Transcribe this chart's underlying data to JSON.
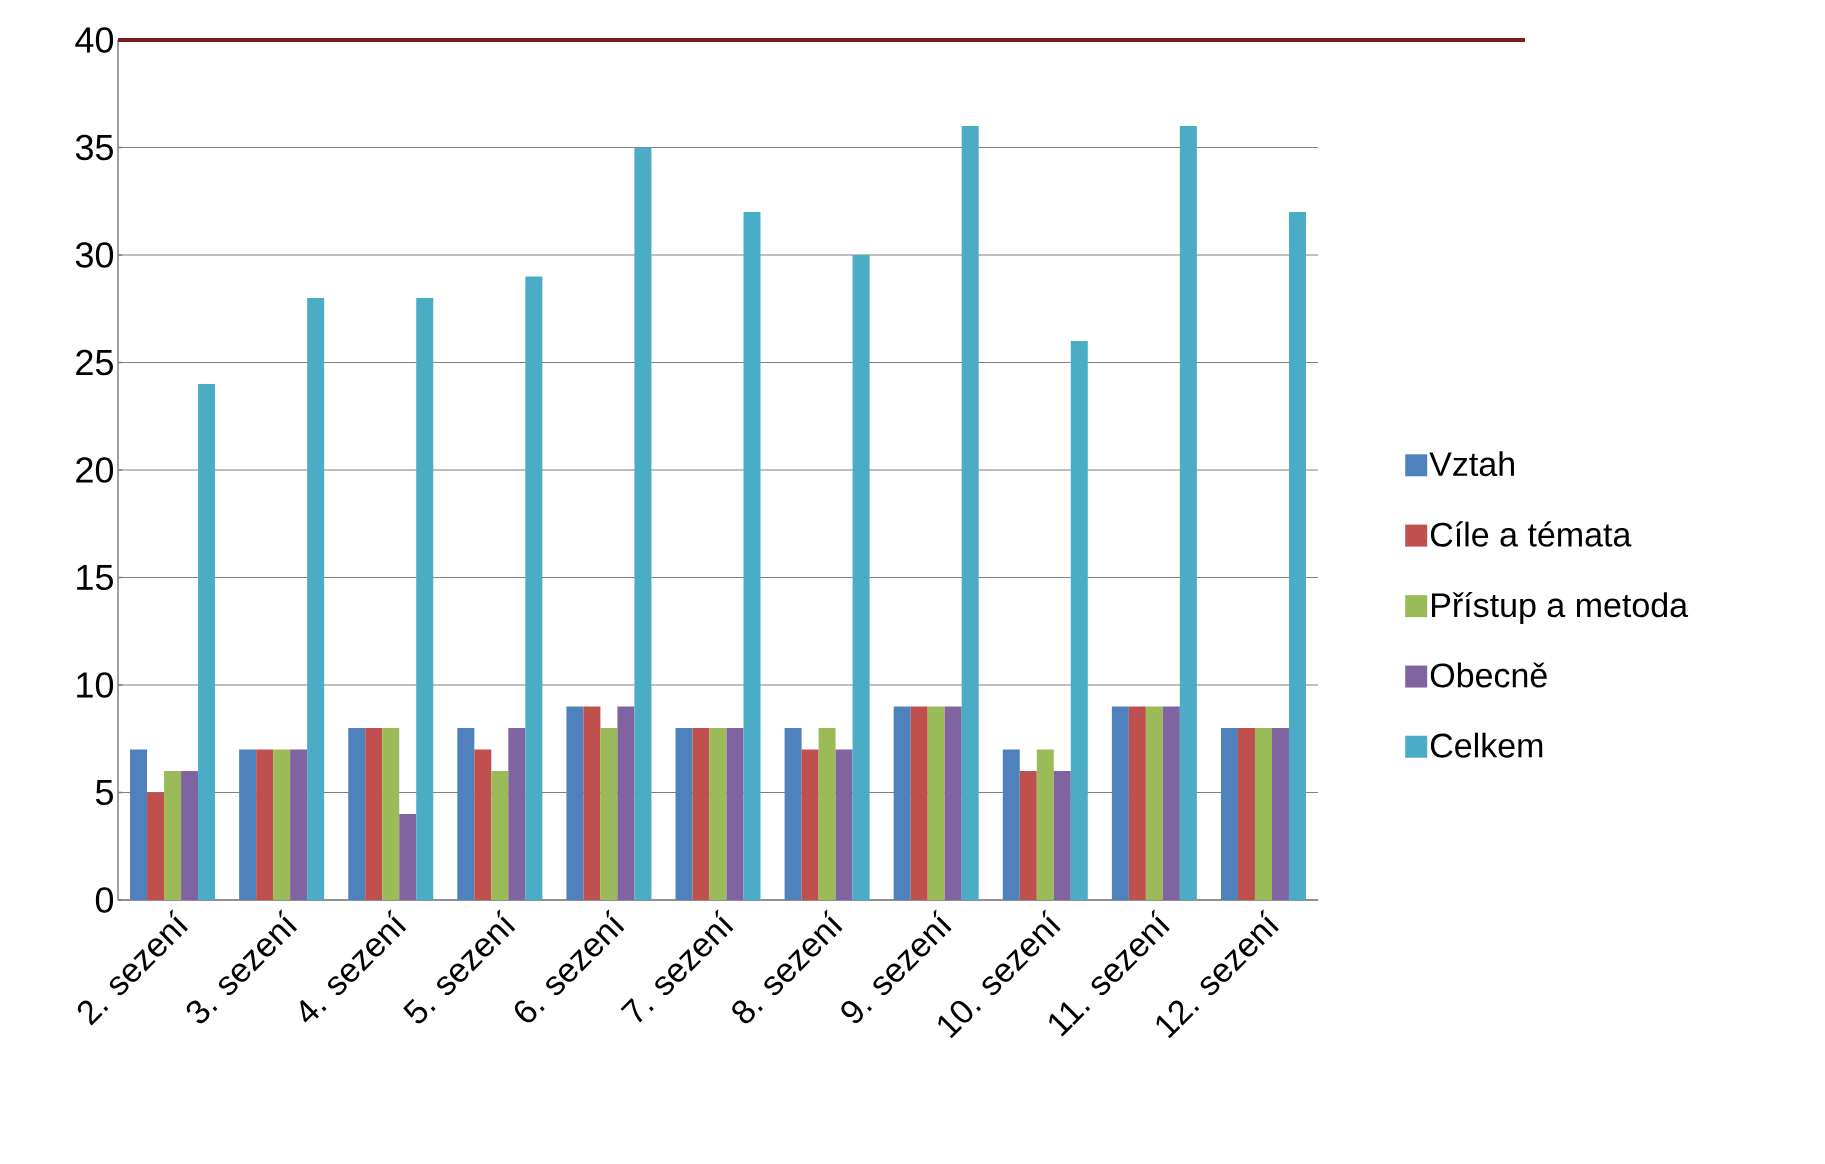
{
  "chart_data": {
    "type": "bar",
    "categories": [
      "2. sezení",
      "3. sezení",
      "4. sezení",
      "5. sezení",
      "6. sezení",
      "7. sezení",
      "8. sezení",
      "9. sezení",
      "10. sezení",
      "11. sezení",
      "12. sezení"
    ],
    "series": [
      {
        "name": "Vztah",
        "color": "#4f81bd",
        "values": [
          7,
          7,
          8,
          8,
          9,
          8,
          8,
          9,
          7,
          9,
          8
        ]
      },
      {
        "name": "Cíle a témata",
        "color": "#c0504d",
        "values": [
          5,
          7,
          8,
          7,
          9,
          8,
          7,
          9,
          6,
          9,
          8
        ]
      },
      {
        "name": "Přístup a metoda",
        "color": "#9bbb59",
        "values": [
          6,
          7,
          8,
          6,
          8,
          8,
          8,
          9,
          7,
          9,
          8
        ]
      },
      {
        "name": "Obecně",
        "color": "#8064a2",
        "values": [
          6,
          7,
          4,
          8,
          9,
          8,
          7,
          9,
          6,
          9,
          8
        ]
      },
      {
        "name": "Celkem",
        "color": "#4bacc6",
        "values": [
          24,
          28,
          28,
          29,
          35,
          32,
          30,
          36,
          26,
          36,
          32
        ]
      }
    ],
    "ylim": [
      0,
      40
    ],
    "yticks": [
      0,
      5,
      10,
      15,
      20,
      25,
      30,
      35,
      40
    ],
    "grid": "y",
    "legend": "right",
    "ref_lines": [
      {
        "axis": "y",
        "value": 40,
        "color": "#7b1b1b"
      }
    ]
  }
}
